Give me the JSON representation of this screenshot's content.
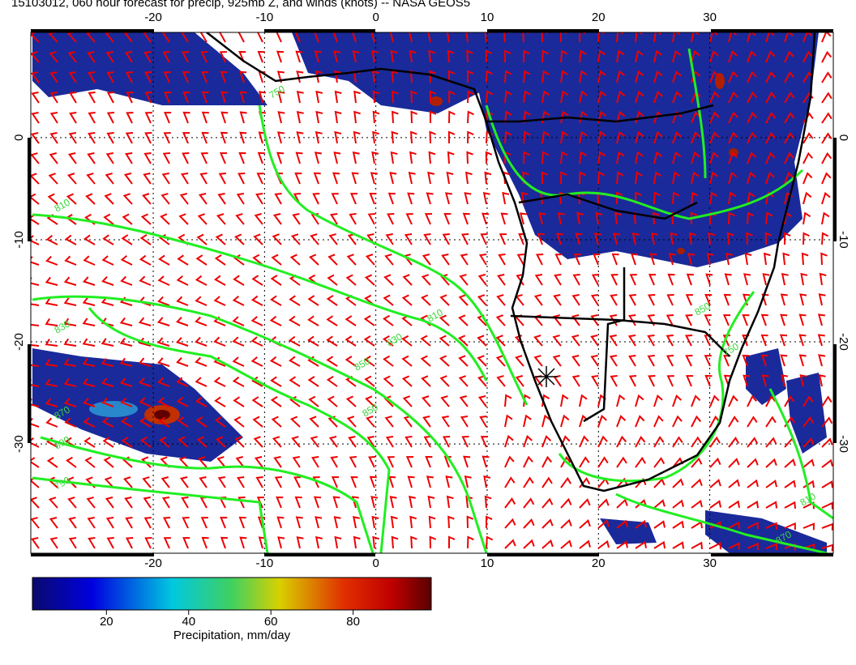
{
  "header": {
    "title": "15103012, 060 hour forecast for precip, 925mb Z, and winds (knots) -- NASA GEOS5"
  },
  "map": {
    "lonlim": [
      -31,
      41.1
    ],
    "latlim": [
      10.3,
      -40.7
    ],
    "lon_ticks": [
      -20,
      -10,
      0,
      10,
      20,
      30
    ],
    "lat_ticks": [
      0,
      -10,
      -20,
      -30
    ],
    "contour_labels": [
      "750",
      "810",
      "830",
      "850",
      "870",
      "890",
      "790",
      "810",
      "850",
      "830",
      "750",
      "850",
      "810",
      "870"
    ]
  },
  "colorbar": {
    "lim": [
      2,
      99
    ],
    "ticks": [
      20,
      40,
      60,
      80
    ],
    "label": "Precipitation, mm/day"
  }
}
